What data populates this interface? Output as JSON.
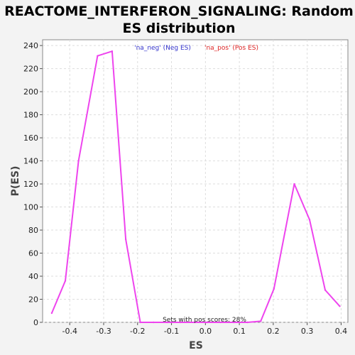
{
  "chart_data": {
    "type": "line",
    "title": "REACTOME_INTERFERON_SIGNALING: Random ES distribution",
    "title_lines": [
      "REACTOME_INTERFERON_SIGNALING: Random",
      "ES distribution"
    ],
    "xlabel": "ES",
    "ylabel": "P(ES)",
    "xlim": [
      -0.48,
      0.42
    ],
    "ylim": [
      0,
      245
    ],
    "xticks": [
      -0.4,
      -0.3,
      -0.2,
      -0.1,
      0.0,
      0.1,
      0.2,
      0.3,
      0.4
    ],
    "xtick_labels": [
      "-0.4",
      "-0.3",
      "-0.2",
      "-0.1",
      "0.0",
      "0.1",
      "0.2",
      "0.3",
      "0.4"
    ],
    "yticks": [
      0,
      20,
      40,
      60,
      80,
      100,
      120,
      140,
      160,
      180,
      200,
      220,
      240
    ],
    "ytick_labels": [
      "0",
      "20",
      "40",
      "60",
      "80",
      "100",
      "120",
      "140",
      "160",
      "180",
      "200",
      "220",
      "240"
    ],
    "grid": true,
    "legend": {
      "placement": "top-center",
      "entries": [
        {
          "label": "'na_neg' (Neg ES)",
          "color": "#3333cc"
        },
        {
          "label": "'na_pos' (Pos ES)",
          "color": "#dd2222"
        }
      ]
    },
    "annotation": "Sets with pos scores: 28%",
    "series": [
      {
        "color": "#ee44ee",
        "x": [
          -0.453,
          -0.413,
          -0.374,
          -0.318,
          -0.275,
          -0.235,
          -0.192,
          -0.153,
          -0.113,
          -0.074,
          -0.034,
          0.005,
          0.045,
          0.084,
          0.124,
          0.163,
          0.202,
          0.262,
          0.307,
          0.353,
          0.396
        ],
        "y": [
          8,
          36,
          140,
          231,
          235,
          72,
          0,
          0,
          0,
          0,
          0,
          0,
          0,
          0,
          0,
          1,
          29,
          120,
          89,
          28,
          14
        ]
      }
    ]
  }
}
